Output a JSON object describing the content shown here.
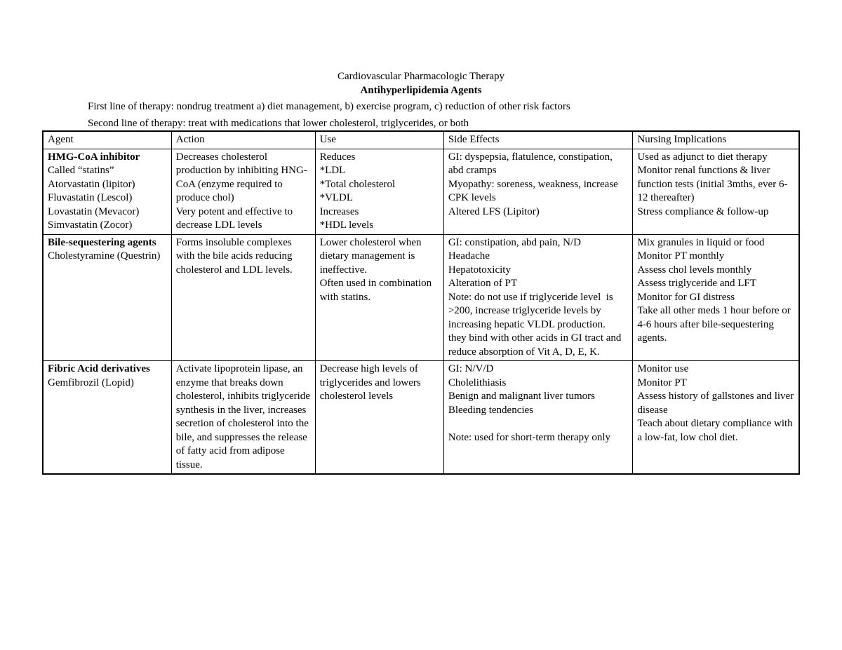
{
  "header": {
    "title": "Cardiovascular Pharmacologic Therapy",
    "subtitle": "Antihyperlipidemia Agents",
    "intro_line1": "First line of therapy: nondrug treatment a) diet management, b) exercise program, c) reduction of other risk factors",
    "intro_line2": "Second line of therapy: treat with medications that lower cholesterol, triglycerides, or both"
  },
  "table": {
    "columns": [
      "Agent",
      "Action",
      "Use",
      "Side Effects",
      "Nursing Implications"
    ],
    "rows": [
      {
        "agent_bold": "HMG-CoA inhibitor",
        "agent_rest": "\nCalled “statins”\nAtorvastatin (lipitor)\nFluvastatin (Lescol)\nLovastatin (Mevacor)\nSimvastatin (Zocor)",
        "action": "Decreases cholesterol production by inhibiting HNG-CoA (enzyme required to produce chol)\nVery potent and effective to decrease LDL levels",
        "use": "Reduces\n*LDL\n*Total cholesterol\n*VLDL\nIncreases\n*HDL levels",
        "side_effects": "GI: dyspepsia, flatulence, constipation, abd cramps\nMyopathy: soreness, weakness, increase CPK levels\nAltered LFS (Lipitor)",
        "nursing": "Used as adjunct to diet therapy\nMonitor renal functions & liver function tests (initial 3mths, ever 6-12 thereafter)\nStress compliance & follow-up"
      },
      {
        "agent_bold": "Bile-sequestering agents",
        "agent_rest": "\nCholestyramine (Questrin)",
        "action": "Forms insoluble complexes with the bile acids reducing cholesterol and LDL levels.",
        "use": "Lower cholesterol when dietary management is ineffective.\nOften used in combination with statins.",
        "side_effects": "GI: constipation, abd pain, N/D\nHeadache\nHepatotoxicity\nAlteration of PT\nNote: do not use if triglyceride level  is >200, increase triglyceride levels by increasing hepatic VLDL production.\nthey bind with other acids in GI tract and reduce absorption of Vit A, D, E, K.",
        "nursing": "Mix granules in liquid or food\nMonitor PT monthly\nAssess chol levels monthly\nAssess triglyceride and LFT\nMonitor for GI distress\nTake all other meds 1 hour before or 4-6 hours after bile-sequestering agents."
      },
      {
        "agent_bold": "Fibric Acid derivatives",
        "agent_rest": "\nGemfibrozil (Lopid)",
        "action": "Activate lipoprotein lipase, an enzyme that breaks down cholesterol, inhibits triglyceride synthesis in the liver, increases secretion of cholesterol into the bile, and suppresses the release of fatty acid from adipose tissue.",
        "use": "Decrease high levels of triglycerides and lowers cholesterol levels",
        "side_effects": "GI: N/V/D\nCholelithiasis\nBenign and malignant liver tumors\nBleeding tendencies\n\nNote: used for short-term therapy only",
        "nursing": "Monitor use\nMonitor PT\nAssess history of gallstones and liver disease\nTeach about dietary compliance with a low-fat, low chol diet."
      }
    ]
  }
}
